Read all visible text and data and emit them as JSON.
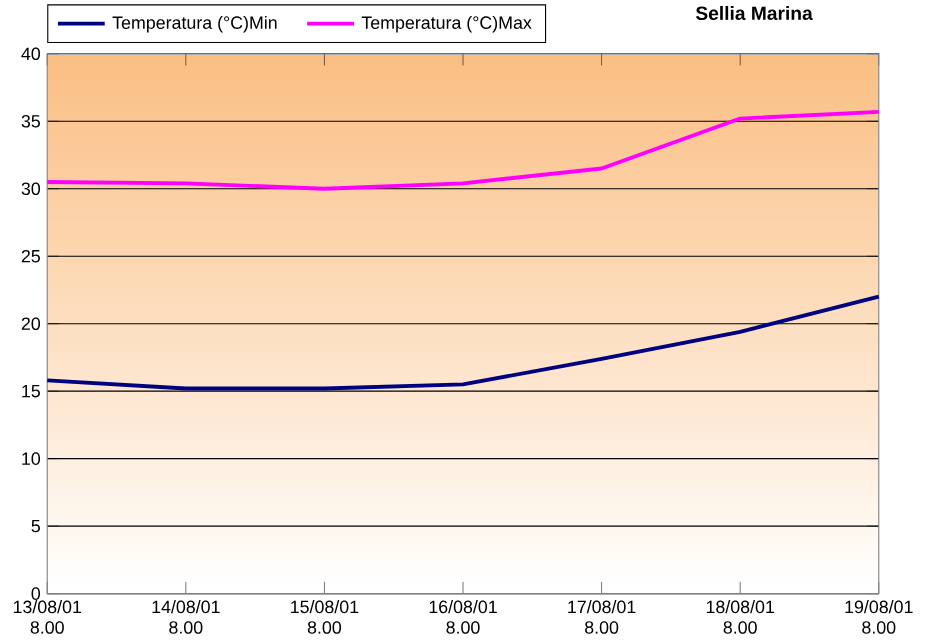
{
  "chart_data": {
    "type": "line",
    "title": "Sellia Marina",
    "categories": [
      "13/08/01 8.00",
      "14/08/01 8.00",
      "15/08/01 8.00",
      "16/08/01 8.00",
      "17/08/01 8.00",
      "18/08/01 8.00",
      "19/08/01 8.00"
    ],
    "series": [
      {
        "name": "Temperatura (°C)Min",
        "color": "#000080",
        "values": [
          15.8,
          15.2,
          15.2,
          15.5,
          17.4,
          19.4,
          22.0
        ]
      },
      {
        "name": "Temperatura (°C)Max",
        "color": "#ff00ff",
        "values": [
          30.5,
          30.4,
          30.0,
          30.4,
          31.5,
          35.2,
          35.7
        ]
      }
    ],
    "ylim": [
      0,
      40
    ],
    "yticks": [
      0,
      5,
      10,
      15,
      20,
      25,
      30,
      35,
      40
    ],
    "grid": "y",
    "legend": "top left",
    "marker": "none",
    "line_style": "solid"
  }
}
